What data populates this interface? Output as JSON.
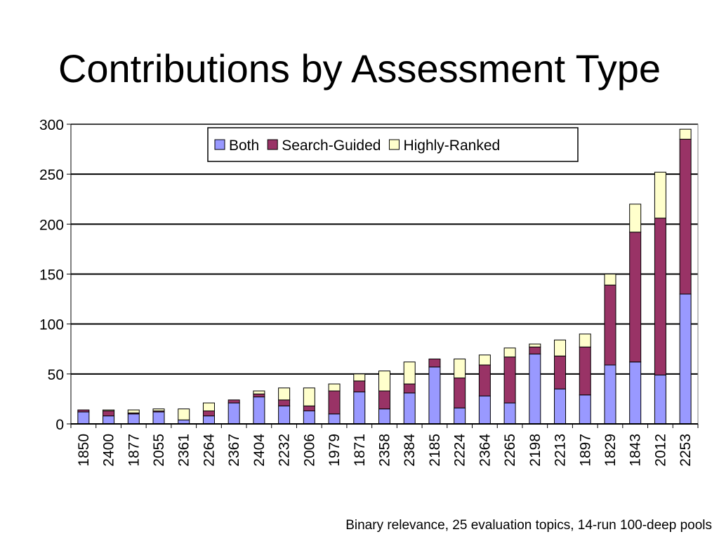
{
  "slide": {
    "title": "Contributions by Assessment Type",
    "footnote": "Binary relevance, 25 evaluation topics, 14-run 100-deep pools"
  },
  "chart_data": {
    "type": "bar",
    "stacked": true,
    "title": "",
    "xlabel": "",
    "ylabel": "",
    "ylim": [
      0,
      300
    ],
    "yticks": [
      0,
      50,
      100,
      150,
      200,
      250,
      300
    ],
    "grid": true,
    "legend_position": "top-center",
    "categories": [
      "1850",
      "2400",
      "1877",
      "2055",
      "2361",
      "2264",
      "2367",
      "2404",
      "2232",
      "2006",
      "1979",
      "1871",
      "2358",
      "2384",
      "2185",
      "2224",
      "2364",
      "2265",
      "2198",
      "2213",
      "1897",
      "1829",
      "1843",
      "2012",
      "2253"
    ],
    "series": [
      {
        "name": "Both",
        "color": "#9999ff",
        "values": [
          12,
          8,
          10,
          12,
          4,
          8,
          21,
          27,
          18,
          13,
          10,
          32,
          15,
          31,
          57,
          16,
          28,
          21,
          70,
          35,
          29,
          59,
          62,
          49,
          130
        ]
      },
      {
        "name": "Search-Guided",
        "color": "#993366",
        "values": [
          2,
          5,
          1,
          1,
          0,
          5,
          3,
          3,
          6,
          5,
          23,
          11,
          18,
          9,
          8,
          30,
          31,
          46,
          7,
          33,
          48,
          80,
          130,
          157,
          155
        ]
      },
      {
        "name": "Highly-Ranked",
        "color": "#ffffcc",
        "values": [
          0,
          1,
          3,
          2,
          11,
          8,
          0,
          3,
          12,
          18,
          7,
          7,
          20,
          22,
          0,
          19,
          10,
          9,
          3,
          16,
          13,
          11,
          28,
          46,
          10
        ]
      }
    ]
  }
}
